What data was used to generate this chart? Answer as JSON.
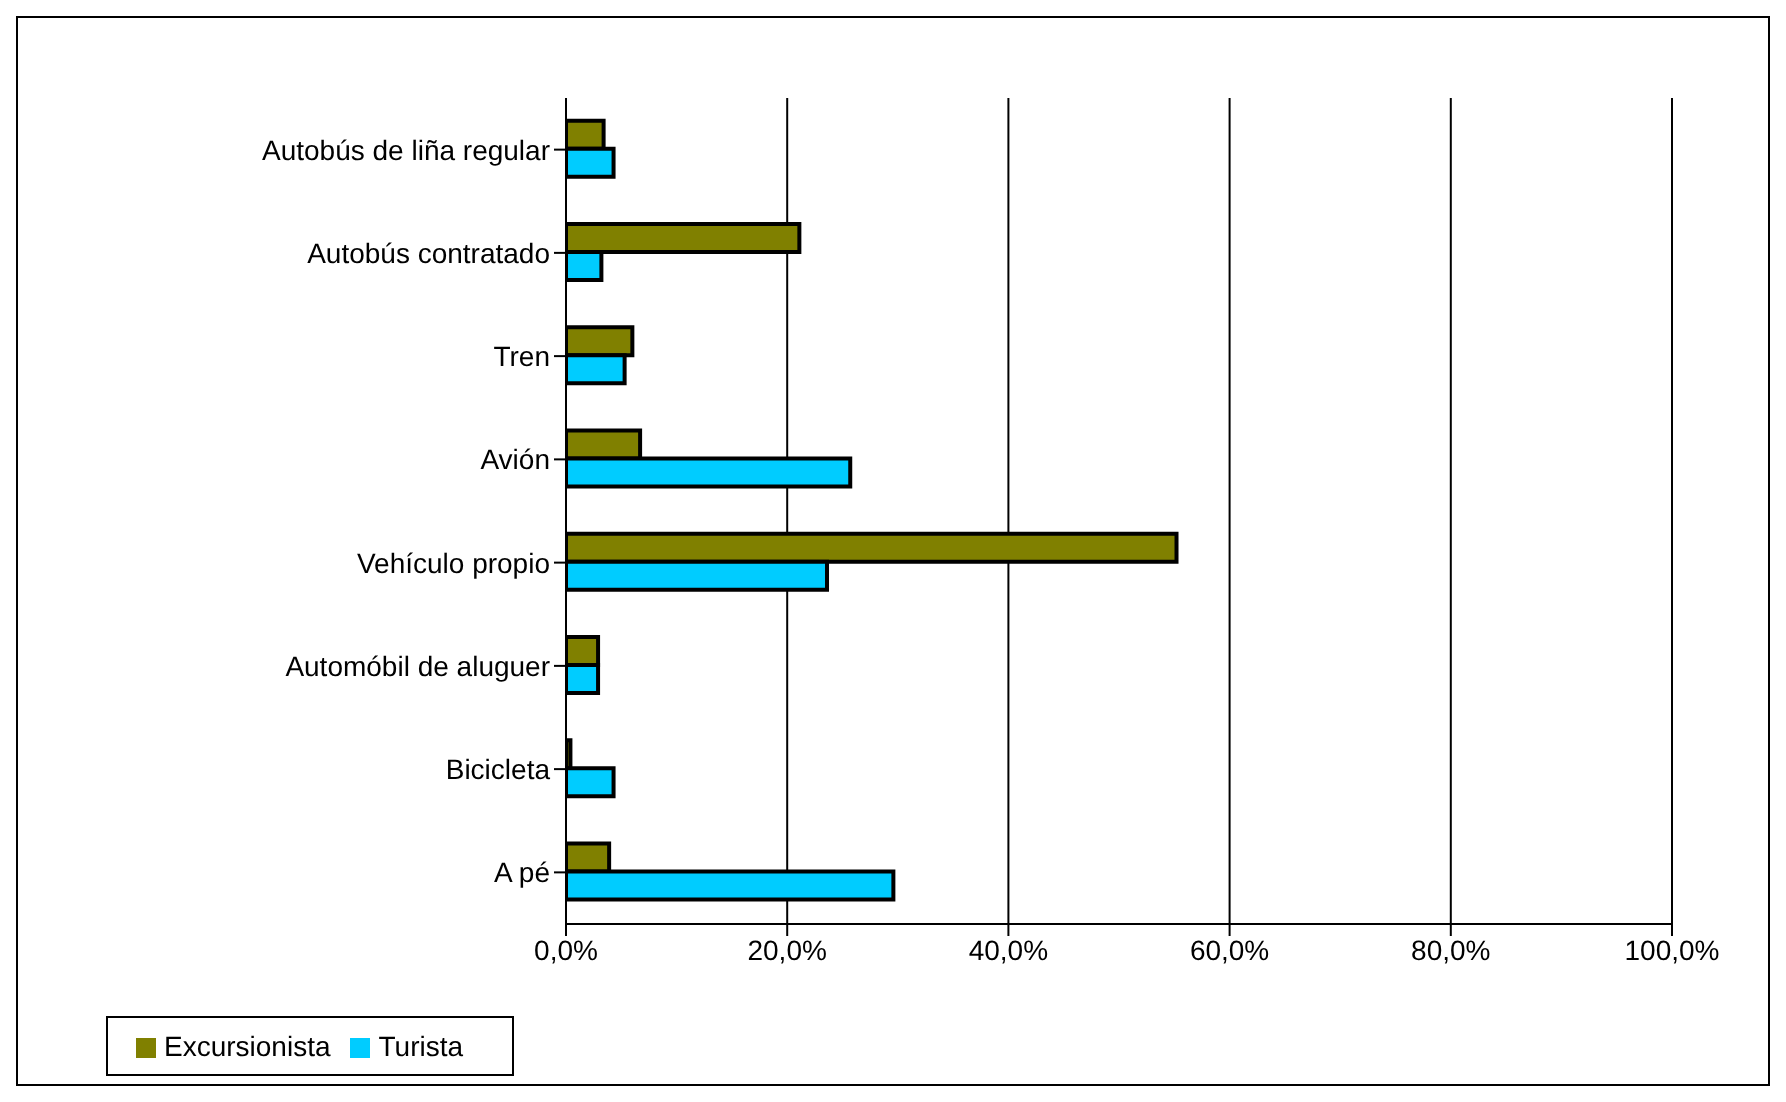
{
  "chart_data": {
    "type": "bar",
    "orientation": "horizontal",
    "categories": [
      "Autobús de liña regular",
      "Autobús contratado",
      "Tren",
      "Avión",
      "Vehículo propio",
      "Automóbil de aluguer",
      "Bicicleta",
      "A pé"
    ],
    "series": [
      {
        "name": "Excursionista",
        "color": "#808000",
        "values": [
          3.4,
          21.1,
          6.0,
          6.7,
          55.2,
          2.9,
          0.4,
          3.9
        ]
      },
      {
        "name": "Turista",
        "color": "#00ccff",
        "values": [
          4.3,
          3.2,
          5.3,
          25.7,
          23.6,
          2.9,
          4.3,
          29.6
        ]
      }
    ],
    "xlim": [
      0,
      100
    ],
    "xticks": [
      {
        "value": 0,
        "label": "0,0%"
      },
      {
        "value": 20,
        "label": "20,0%"
      },
      {
        "value": 40,
        "label": "40,0%"
      },
      {
        "value": 60,
        "label": "60,0%"
      },
      {
        "value": 80,
        "label": "80,0%"
      },
      {
        "value": 100,
        "label": "100,0%"
      }
    ],
    "grid": "x",
    "legend": "bottom left"
  }
}
